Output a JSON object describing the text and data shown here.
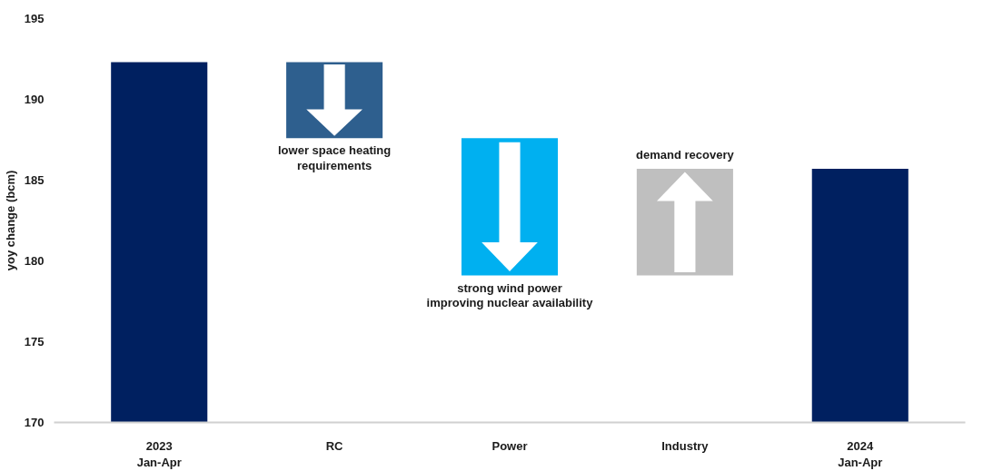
{
  "chart_data": {
    "type": "bar",
    "ylabel": "yoy change (bcm)",
    "categories": [
      "2023\nJan-Apr",
      "RC",
      "Power",
      "Industry",
      "2024\nJan-Apr"
    ],
    "values": [
      22.3,
      -4.7,
      -8.5,
      6.6,
      15.7
    ],
    "base": [
      170,
      192.3,
      187.6,
      179.1,
      170
    ],
    "colors": [
      "#002060",
      "#2e5f8e",
      "#00b0f0",
      "#bfbfbf",
      "#002060"
    ],
    "ylim": [
      170,
      195
    ],
    "yticks": [
      170,
      175,
      180,
      185,
      190,
      195
    ],
    "grid": false,
    "annotations": [
      {
        "text": "lower space heating\nrequirements",
        "x": "RC",
        "y": 187.6
      },
      {
        "text": "strong wind power\nimproving nuclear availability",
        "x": "Power",
        "y": 179.1
      },
      {
        "text": "demand recovery",
        "x": "Industry",
        "y": 185.7
      }
    ]
  }
}
